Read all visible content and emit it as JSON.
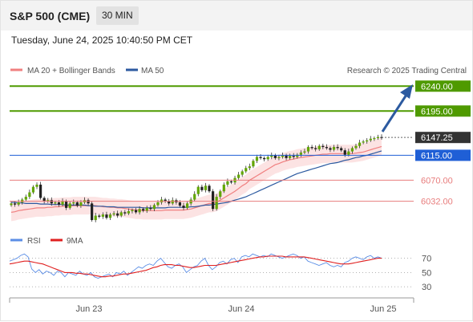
{
  "header": {
    "title": "S&P 500 (CME)",
    "timeframe": "30 MIN",
    "datetime": "Tuesday, June 24, 2025 10:40:50 PM CET"
  },
  "legend": {
    "ma20_bb": "MA 20 + Bollinger Bands",
    "ma50": "MA 50",
    "credit": "Research © 2025 Trading Central"
  },
  "rsi_legend": {
    "rsi": "RSI",
    "ma9": "9MA"
  },
  "colors": {
    "up": "#62a600",
    "ma20": "#f08080",
    "ma50": "#2c5aa0",
    "pivot": "#1f5fd6",
    "resistance": "#4f9a00",
    "support": "#e87d7d",
    "last": "#333333",
    "rsi": "#5b8ee6",
    "rsi_ma": "#e02020",
    "arrow": "#2c5aa0"
  },
  "chart_data": [
    {
      "type": "candlestick",
      "x_ticks": [
        "Jun 23",
        "Jun 24",
        "Jun 25"
      ],
      "ylim": [
        5985,
        6252
      ],
      "levels": [
        {
          "value": 6240.0,
          "label": "6240.00",
          "kind": "resistance"
        },
        {
          "value": 6195.0,
          "label": "6195.00",
          "kind": "resistance"
        },
        {
          "value": 6147.25,
          "label": "6147.25",
          "kind": "last"
        },
        {
          "value": 6115.0,
          "label": "6115.00",
          "kind": "pivot"
        },
        {
          "value": 6070.0,
          "label": "6070.00",
          "kind": "support"
        },
        {
          "value": 6032.0,
          "label": "6032.00",
          "kind": "support"
        }
      ],
      "close": [
        6028,
        6026,
        6030,
        6035,
        6040,
        6048,
        6058,
        6062,
        6038,
        6032,
        6034,
        6028,
        6030,
        6026,
        6032,
        6020,
        6028,
        6030,
        6024,
        6030,
        6034,
        6028,
        5998,
        6006,
        6004,
        6008,
        6002,
        6008,
        6010,
        6006,
        6012,
        6010,
        6014,
        6016,
        6012,
        6018,
        6015,
        6020,
        6018,
        6025,
        6030,
        6035,
        6032,
        6028,
        6034,
        6030,
        6024,
        6020,
        6028,
        6035,
        6045,
        6058,
        6052,
        6060,
        6050,
        6018,
        6040,
        6050,
        6062,
        6068,
        6066,
        6074,
        6080,
        6086,
        6092,
        6095,
        6105,
        6112,
        6110,
        6108,
        6112,
        6115,
        6110,
        6112,
        6115,
        6110,
        6114,
        6112,
        6116,
        6120,
        6122,
        6130,
        6128,
        6126,
        6132,
        6130,
        6128,
        6125,
        6130,
        6128,
        6124,
        6116,
        6122,
        6128,
        6132,
        6138,
        6140,
        6142,
        6145,
        6146,
        6148,
        6147.25
      ],
      "ma20": [
        6012,
        6013,
        6015,
        6016,
        6017,
        6018,
        6019,
        6020,
        6020,
        6020,
        6021,
        6021,
        6022,
        6022,
        6023,
        6023,
        6023,
        6024,
        6024,
        6024,
        6024,
        6024,
        6024,
        6024,
        6023,
        6022,
        6022,
        6021,
        6021,
        6020,
        6020,
        6019,
        6018,
        6017,
        6016,
        6016,
        6015,
        6015,
        6015,
        6015,
        6015,
        6015,
        6016,
        6016,
        6016,
        6016,
        6016,
        6016,
        6017,
        6018,
        6020,
        6022,
        6024,
        6026,
        6028,
        6028,
        6030,
        6034,
        6038,
        6042,
        6046,
        6050,
        6055,
        6060,
        6064,
        6070,
        6074,
        6078,
        6082,
        6086,
        6090,
        6094,
        6098,
        6100,
        6103,
        6105,
        6107,
        6108,
        6110,
        6111,
        6112,
        6113,
        6114,
        6115,
        6116,
        6117,
        6117,
        6118,
        6118,
        6118,
        6118,
        6118,
        6118,
        6118,
        6119,
        6120,
        6121,
        6123,
        6125,
        6127,
        6129,
        6131
      ],
      "ma50": [
        6030,
        6030,
        6029,
        6029,
        6028,
        6028,
        6028,
        6028,
        6027,
        6027,
        6027,
        6026,
        6026,
        6026,
        6026,
        6025,
        6025,
        6025,
        6025,
        6025,
        6025,
        6024,
        6024,
        6023,
        6023,
        6023,
        6022,
        6022,
        6022,
        6021,
        6021,
        6021,
        6021,
        6021,
        6021,
        6021,
        6020,
        6020,
        6020,
        6020,
        6020,
        6020,
        6020,
        6021,
        6021,
        6021,
        6021,
        6021,
        6021,
        6022,
        6022,
        6023,
        6024,
        6025,
        6025,
        6026,
        6027,
        6028,
        6029,
        6030,
        6032,
        6034,
        6036,
        6038,
        6040,
        6043,
        6046,
        6049,
        6052,
        6055,
        6058,
        6061,
        6064,
        6067,
        6070,
        6073,
        6076,
        6079,
        6082,
        6084,
        6086,
        6088,
        6090,
        6092,
        6094,
        6096,
        6098,
        6100,
        6101,
        6102,
        6104,
        6106,
        6107,
        6109,
        6111,
        6112,
        6114,
        6115,
        6117,
        6119,
        6121,
        6123
      ]
    },
    {
      "type": "line",
      "title": "RSI",
      "yticks": [
        70,
        50,
        30
      ],
      "ylim": [
        20,
        82
      ],
      "series": [
        {
          "name": "RSI",
          "values": [
            66,
            68,
            70,
            74,
            76,
            72,
            55,
            50,
            54,
            48,
            52,
            50,
            46,
            52,
            50,
            44,
            50,
            48,
            46,
            52,
            48,
            46,
            50,
            44,
            42,
            44,
            46,
            48,
            44,
            50,
            48,
            52,
            46,
            50,
            54,
            58,
            56,
            60,
            62,
            60,
            66,
            70,
            64,
            58,
            56,
            60,
            62,
            58,
            50,
            54,
            58,
            60,
            66,
            70,
            60,
            54,
            58,
            64,
            66,
            62,
            68,
            70,
            64,
            72,
            74,
            72,
            76,
            74,
            72,
            74,
            72,
            76,
            74,
            72,
            70,
            72,
            74,
            76,
            74,
            70,
            72,
            66,
            64,
            62,
            60,
            62,
            64,
            60,
            58,
            60,
            58,
            64,
            66,
            70,
            72,
            70,
            68,
            72,
            74,
            70,
            72,
            70
          ]
        },
        {
          "name": "9MA",
          "values": [
            62,
            63,
            64,
            65,
            66,
            66,
            65,
            64,
            63,
            62,
            60,
            58,
            56,
            54,
            52,
            50,
            50,
            50,
            49,
            49,
            48,
            48,
            47,
            46,
            45,
            44,
            44,
            45,
            45,
            46,
            47,
            48,
            48,
            49,
            50,
            51,
            52,
            53,
            55,
            57,
            58,
            60,
            61,
            61,
            61,
            60,
            60,
            59,
            58,
            57,
            57,
            58,
            59,
            60,
            60,
            60,
            60,
            61,
            62,
            63,
            64,
            65,
            66,
            67,
            68,
            69,
            70,
            71,
            72,
            72,
            73,
            73,
            73,
            73,
            73,
            72,
            72,
            72,
            72,
            72,
            72,
            71,
            70,
            69,
            68,
            67,
            66,
            65,
            64,
            63,
            62,
            62,
            62,
            63,
            64,
            65,
            66,
            67,
            68,
            69,
            70,
            70
          ]
        }
      ]
    }
  ]
}
